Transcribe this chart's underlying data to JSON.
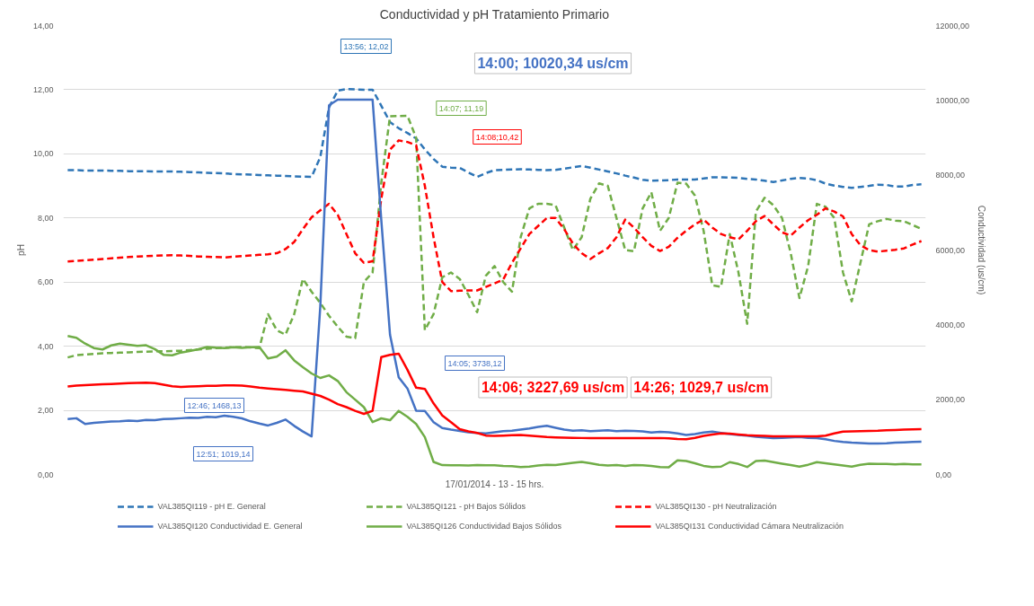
{
  "chart_data": {
    "type": "line",
    "title": "Conductividad y pH Tratamiento Primario",
    "xlabel": "17/01/2014 - 13 - 15 hrs.",
    "ylabel": "pH",
    "y2label": "Conductividad (us/cm)",
    "categories": [
      null,
      null,
      null,
      null,
      null,
      null,
      null,
      null,
      null,
      null,
      null,
      null,
      null,
      null,
      null,
      null,
      null,
      null,
      null,
      null,
      null,
      null,
      null,
      null,
      null,
      null,
      null,
      null,
      null,
      null,
      null,
      null,
      null,
      null,
      null,
      null,
      null,
      null,
      null,
      null,
      null,
      null,
      null,
      null,
      null,
      null,
      null,
      null,
      null,
      null,
      null,
      null,
      null,
      null,
      null,
      null,
      null,
      null,
      null,
      null,
      null,
      null,
      null,
      null,
      null,
      null,
      null,
      null,
      null,
      null,
      null,
      null,
      null,
      null,
      null,
      null,
      null,
      null,
      null,
      null,
      null,
      null,
      null,
      null,
      null,
      null,
      null,
      null,
      null,
      null,
      null,
      null,
      null,
      null,
      null,
      null,
      null,
      null,
      null
    ],
    "ylim": [
      0,
      14
    ],
    "yticks": [
      {
        "value": 0,
        "label": "0,00"
      },
      {
        "value": 2,
        "label": "2,00"
      },
      {
        "value": 4,
        "label": "4,00"
      },
      {
        "value": 6,
        "label": "6,00"
      },
      {
        "value": 8,
        "label": "8,00"
      },
      {
        "value": 10,
        "label": "10,00"
      },
      {
        "value": 12,
        "label": "12,00"
      },
      {
        "value": 14,
        "label": "14,00"
      }
    ],
    "y2lim": [
      0,
      12000
    ],
    "y2ticks": [
      {
        "value": 0,
        "label": "0,00"
      },
      {
        "value": 2000,
        "label": "2000,00"
      },
      {
        "value": 4000,
        "label": "4000,00"
      },
      {
        "value": 6000,
        "label": "6000,00"
      },
      {
        "value": 8000,
        "label": "8000,00"
      },
      {
        "value": 10000,
        "label": "10000,00"
      },
      {
        "value": 12000,
        "label": "12000,00"
      }
    ],
    "grid": "y",
    "legend": "bottom",
    "series": [
      {
        "name": "VAL385QI119 - pH E. General",
        "color": "#2e75b6",
        "line_style": "dashed",
        "values": [
          9.49,
          9.49,
          9.48,
          9.48,
          9.48,
          9.47,
          9.47,
          9.46,
          9.46,
          9.46,
          9.45,
          9.45,
          9.45,
          9.44,
          9.43,
          9.42,
          9.41,
          9.4,
          9.39,
          9.37,
          9.36,
          9.35,
          9.34,
          9.33,
          9.32,
          9.31,
          9.3,
          9.29,
          9.28,
          9.9,
          11.45,
          11.97,
          12.02,
          12.01,
          12.0,
          12.0,
          11.5,
          10.99,
          10.8,
          10.65,
          10.48,
          10.14,
          9.84,
          9.6,
          9.57,
          9.56,
          9.42,
          9.28,
          9.4,
          9.49,
          9.5,
          9.51,
          9.52,
          9.51,
          9.5,
          9.49,
          9.5,
          9.54,
          9.58,
          9.62,
          9.57,
          9.51,
          9.45,
          9.39,
          9.32,
          9.26,
          9.19,
          9.16,
          9.17,
          9.18,
          9.2,
          9.2,
          9.2,
          9.23,
          9.27,
          9.27,
          9.26,
          9.25,
          9.22,
          9.2,
          9.16,
          9.12,
          9.17,
          9.22,
          9.25,
          9.23,
          9.18,
          9.07,
          9.01,
          8.97,
          8.94,
          8.97,
          9.0,
          9.04,
          9.03,
          8.98,
          8.98,
          9.03,
          9.05
        ]
      },
      {
        "name": "VAL385QI121 - pH Bajos Sólidos",
        "color": "#70ad47",
        "line_style": "dashed",
        "values": [
          3.65,
          3.72,
          3.74,
          3.76,
          3.78,
          3.79,
          3.8,
          3.81,
          3.82,
          3.83,
          3.84,
          3.84,
          3.85,
          3.86,
          3.88,
          3.9,
          3.92,
          3.94,
          3.95,
          3.97,
          3.98,
          3.96,
          3.94,
          5.0,
          4.5,
          4.36,
          5.0,
          6.1,
          5.7,
          5.35,
          4.95,
          4.61,
          4.3,
          4.25,
          6.0,
          6.3,
          9.1,
          11.17,
          11.18,
          11.19,
          10.5,
          4.5,
          5.0,
          6.15,
          6.3,
          6.1,
          5.6,
          5.06,
          6.2,
          6.5,
          6.0,
          5.7,
          7.4,
          8.3,
          8.44,
          8.44,
          8.4,
          7.7,
          7.0,
          7.4,
          8.6,
          9.08,
          9.0,
          8.0,
          7.0,
          6.96,
          8.3,
          8.8,
          7.6,
          8.0,
          9.1,
          9.07,
          8.7,
          7.6,
          5.9,
          5.85,
          7.5,
          6.3,
          4.7,
          8.2,
          8.63,
          8.4,
          8.0,
          6.9,
          5.5,
          6.5,
          8.44,
          8.35,
          8.0,
          6.3,
          5.4,
          6.6,
          7.8,
          7.9,
          7.97,
          7.92,
          7.9,
          7.78,
          7.66
        ]
      },
      {
        "name": "VAL385QI130 - pH Neutralización",
        "color": "#ff0000",
        "line_style": "dashed",
        "values": [
          6.64,
          6.66,
          6.68,
          6.7,
          6.72,
          6.74,
          6.76,
          6.78,
          6.8,
          6.81,
          6.82,
          6.83,
          6.84,
          6.83,
          6.82,
          6.8,
          6.79,
          6.78,
          6.77,
          6.79,
          6.81,
          6.83,
          6.85,
          6.87,
          6.9,
          7.03,
          7.25,
          7.65,
          8.02,
          8.24,
          8.44,
          8.1,
          7.5,
          6.9,
          6.6,
          6.65,
          8.6,
          10.13,
          10.42,
          10.37,
          10.27,
          9.0,
          7.4,
          6.0,
          5.72,
          5.73,
          5.74,
          5.74,
          5.85,
          5.96,
          6.08,
          6.6,
          7.05,
          7.5,
          7.75,
          8.0,
          8.0,
          7.65,
          7.2,
          6.9,
          6.72,
          6.9,
          7.06,
          7.4,
          7.95,
          7.7,
          7.4,
          7.13,
          6.97,
          7.1,
          7.38,
          7.6,
          7.8,
          7.95,
          7.7,
          7.5,
          7.4,
          7.33,
          7.6,
          7.9,
          8.06,
          7.8,
          7.55,
          7.45,
          7.7,
          7.93,
          8.1,
          8.3,
          8.2,
          8.05,
          7.5,
          7.15,
          7.0,
          6.95,
          6.98,
          7.01,
          7.05,
          7.17,
          7.28
        ]
      },
      {
        "name": "VAL385QI120 Conductividad E. General",
        "color": "#4472c4",
        "line_style": "solid",
        "axis": "y2",
        "values": [
          1480,
          1503,
          1350,
          1380,
          1400,
          1415,
          1420,
          1440,
          1430,
          1460,
          1450,
          1480,
          1490,
          1503,
          1520,
          1510,
          1540,
          1530,
          1570,
          1540,
          1500,
          1420,
          1360,
          1310,
          1380,
          1468.13,
          1300,
          1150,
          1019.14,
          4500,
          9870,
          10020,
          10020,
          10020,
          10020,
          10020.34,
          6800,
          3738.12,
          2600,
          2300,
          1705,
          1700,
          1400,
          1240,
          1200,
          1166,
          1130,
          1110,
          1100,
          1130,
          1160,
          1170,
          1200,
          1230,
          1270,
          1300,
          1250,
          1200,
          1170,
          1180,
          1160,
          1170,
          1180,
          1160,
          1170,
          1166,
          1150,
          1120,
          1140,
          1130,
          1100,
          1054,
          1080,
          1120,
          1144,
          1110,
          1080,
          1054,
          1040,
          1010,
          990,
          974,
          980,
          990,
          1000,
          980,
          974,
          940,
          897,
          870,
          850,
          840,
          830,
          830,
          835,
          850,
          860,
          870,
          875
        ]
      },
      {
        "name": "VAL385QI126 Conductividad Bajos Sólidos",
        "color": "#70ad47",
        "line_style": "solid",
        "axis": "y2",
        "values": [
          3700,
          3656,
          3500,
          3380,
          3342,
          3450,
          3500,
          3470,
          3440,
          3454,
          3350,
          3200,
          3185,
          3260,
          3300,
          3350,
          3410,
          3390,
          3380,
          3400,
          3386,
          3400,
          3410,
          3100,
          3150,
          3320,
          3050,
          2870,
          2700,
          2580,
          2650,
          2500,
          2200,
          2000,
          1800,
          1400,
          1500,
          1450,
          1700,
          1540,
          1350,
          1000,
          336,
          250,
          247,
          247,
          240,
          250,
          247,
          247,
          230,
          220,
          200,
          210,
          240,
          260,
          250,
          280,
          310,
          336,
          300,
          260,
          240,
          250,
          230,
          250,
          247,
          230,
          200,
          190,
          380,
          360,
          300,
          230,
          200,
          210,
          330,
          280,
          200,
          360,
          370,
          330,
          290,
          250,
          210,
          260,
          330,
          300,
          270,
          240,
          210,
          260,
          290,
          280,
          280,
          270,
          280,
          270,
          270
        ]
      },
      {
        "name": "VAL385QI131 Conductividad Cámara Neutralización",
        "color": "#ff0000",
        "line_style": "solid",
        "axis": "y2",
        "values": [
          2350,
          2378,
          2390,
          2400,
          2410,
          2420,
          2430,
          2440,
          2450,
          2456,
          2440,
          2400,
          2360,
          2340,
          2350,
          2360,
          2370,
          2370,
          2380,
          2380,
          2378,
          2350,
          2320,
          2300,
          2280,
          2260,
          2240,
          2220,
          2160,
          2100,
          2000,
          1880,
          1800,
          1700,
          1620,
          1700,
          3140,
          3200,
          3227.69,
          2800,
          2320,
          2288,
          1900,
          1580,
          1400,
          1211,
          1150,
          1110,
          1040,
          1029.7,
          1040,
          1050,
          1054,
          1040,
          1020,
          1000,
          990,
          985,
          980,
          975,
          975,
          975,
          975,
          975,
          975,
          975,
          975,
          975,
          975,
          965,
          950,
          942,
          980,
          1030,
          1070,
          1099,
          1090,
          1070,
          1050,
          1040,
          1030,
          1020,
          1020,
          1020,
          1020,
          1020,
          1020,
          1040,
          1100,
          1144,
          1150,
          1160,
          1166,
          1170,
          1180,
          1190,
          1200,
          1205,
          1211
        ]
      }
    ],
    "annotations": [
      "13:56; 12,02",
      "14:00; 10020,34 us/cm",
      "14:07; 11,19",
      "14:08;10,42",
      "14:05; 3738,12",
      "14:06; 3227,69 us/cm",
      "14:26; 1029,7 us/cm",
      "12:46; 1468,13",
      "12:51; 1019,14"
    ]
  }
}
